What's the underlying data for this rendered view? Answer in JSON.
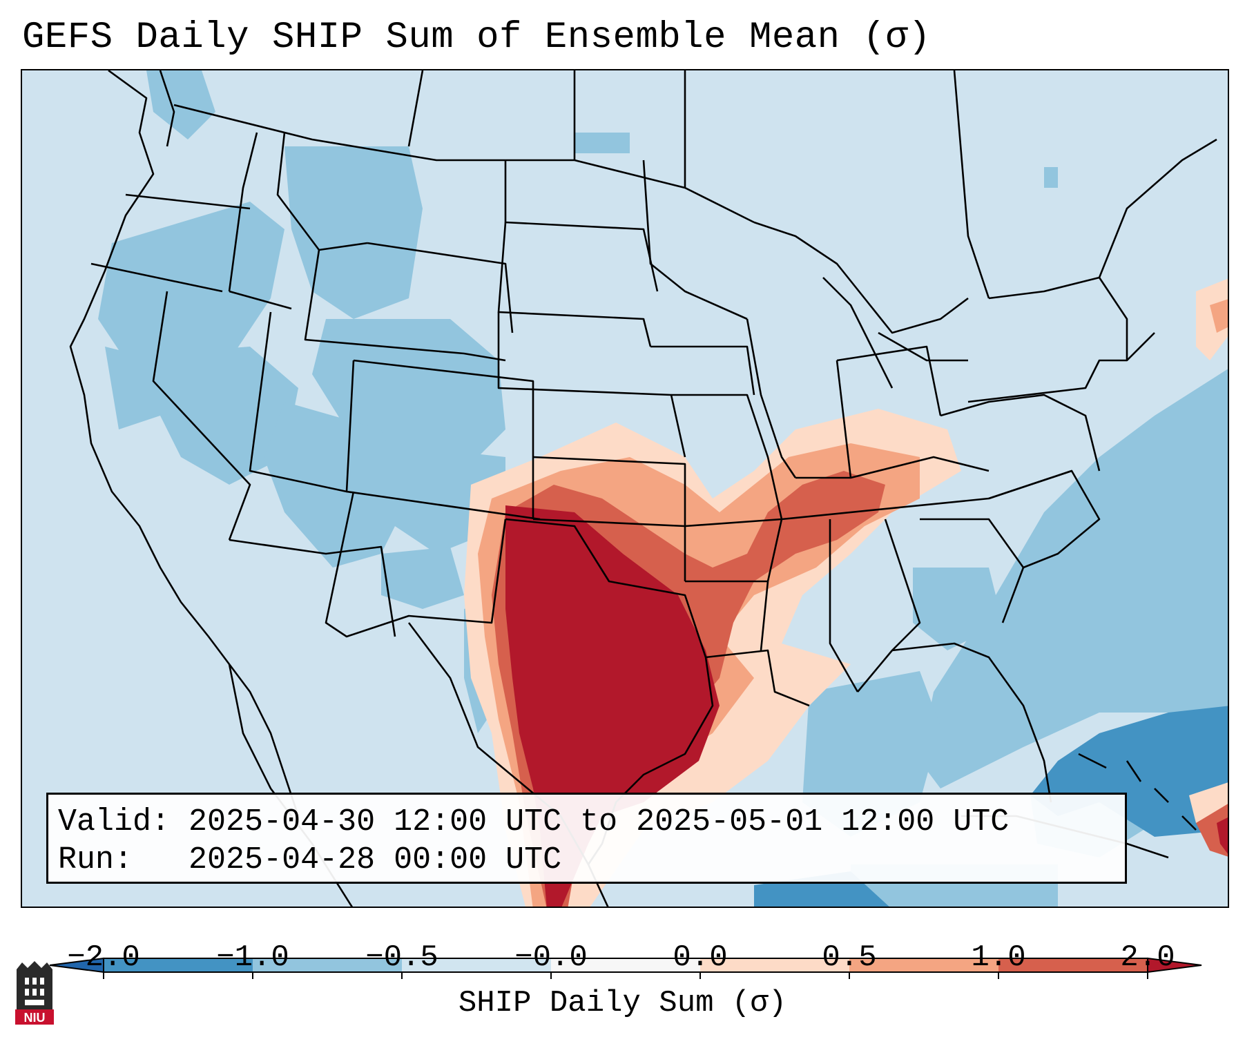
{
  "title": "GEFS Daily SHIP Sum of Ensemble Mean (σ)",
  "info": {
    "valid_label": "Valid:",
    "valid_value": "2025-04-30 12:00 UTC to 2025-05-01 12:00 UTC",
    "run_label": "Run:",
    "run_value": "2025-04-28 00:00 UTC"
  },
  "colorbar": {
    "label": "SHIP Daily Sum (σ)",
    "ticks": [
      "−2.0",
      "−1.0",
      "−0.5",
      "−0.0",
      "0.0",
      "0.5",
      "1.0",
      "2.0"
    ],
    "colors": {
      "below_-2": "#2166ac",
      "-2_to_-1": "#4393c3",
      "-1_to_-0.5": "#92c5de",
      "-0.5_to_0": "#d1e5f0",
      "0_to_0.5": "#fddbc7",
      "0.5_to_1": "#f4a582",
      "1_to_2": "#d6604d",
      "above_2": "#b2182b"
    }
  },
  "logo": {
    "text": "NIU",
    "icon": "niu-building-icon"
  }
}
